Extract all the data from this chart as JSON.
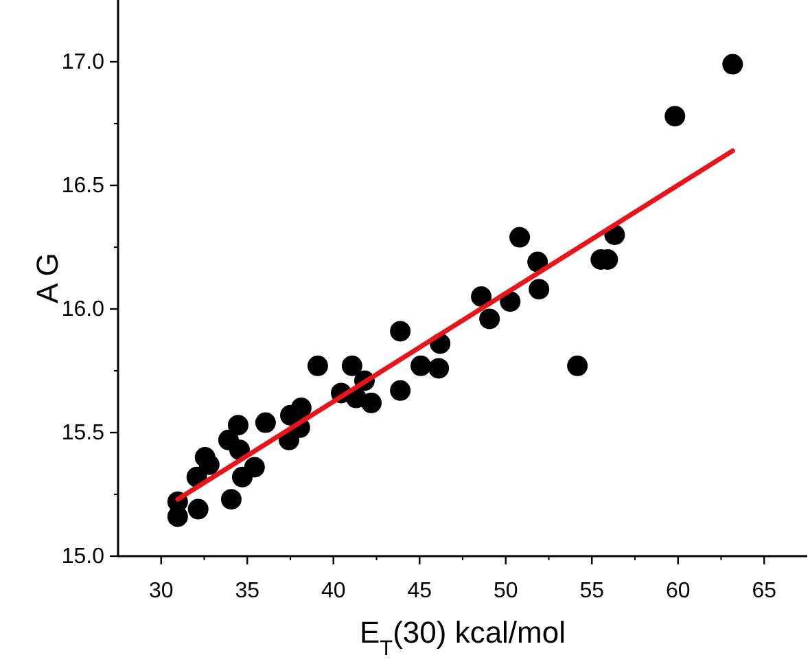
{
  "chart_data": {
    "type": "scatter",
    "xlabel": "E$_{T}$(30) kcal/mol",
    "ylabel": "A G",
    "xlim": [
      27.5,
      67.5
    ],
    "ylim": [
      15.0,
      17.25
    ],
    "xticks": [
      30,
      35,
      40,
      45,
      50,
      55,
      60,
      65
    ],
    "yticks": [
      {
        "value": 15.0,
        "label": "15.0"
      },
      {
        "value": 15.5,
        "label": "15.5"
      },
      {
        "value": 16.0,
        "label": "16.0"
      },
      {
        "value": 16.5,
        "label": "16.5"
      },
      {
        "value": 17.0,
        "label": "17.0"
      }
    ],
    "grid": false,
    "marker": "circle",
    "series": [
      {
        "color": "#000000",
        "x": [
          30.96,
          30.96,
          32.15,
          32.07,
          32.55,
          32.79,
          33.91,
          34.07,
          34.47,
          34.55,
          34.71,
          35.42,
          36.06,
          37.42,
          37.5,
          38.13,
          38.05,
          39.09,
          40.45,
          41.08,
          41.32,
          41.8,
          42.2,
          43.88,
          43.88,
          45.07,
          46.11,
          46.19,
          48.58,
          49.06,
          50.26,
          50.81,
          51.85,
          51.93,
          54.16,
          55.52,
          55.92,
          56.32,
          59.82,
          63.17
        ],
        "values": [
          15.22,
          15.16,
          15.19,
          15.32,
          15.4,
          15.37,
          15.47,
          15.23,
          15.53,
          15.43,
          15.32,
          15.36,
          15.54,
          15.47,
          15.57,
          15.6,
          15.52,
          15.77,
          15.66,
          15.77,
          15.64,
          15.71,
          15.62,
          15.91,
          15.67,
          15.77,
          15.76,
          15.86,
          16.05,
          15.96,
          16.03,
          16.29,
          16.19,
          16.08,
          15.77,
          16.2,
          16.2,
          16.3,
          16.78,
          16.99
        ]
      },
      {
        "type": "line",
        "color": "#e8141c",
        "marker": "none",
        "line_style": "solid",
        "x": [
          30.96,
          63.17
        ],
        "values": [
          15.23,
          16.64
        ]
      }
    ]
  }
}
